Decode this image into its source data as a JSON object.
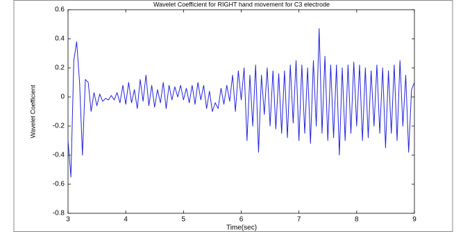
{
  "chart_data": {
    "type": "line",
    "title": "Wavelet Coefficient for RIGHT hand movement for C3 electrode",
    "x_label": "Time(sec)",
    "y_label": "Wavelet Coefficient",
    "xlim": [
      3,
      9
    ],
    "xticks": [
      3,
      4,
      5,
      6,
      7,
      8,
      9
    ],
    "ylim": [
      -0.8,
      0.6
    ],
    "yticks": [
      -0.8,
      -0.6,
      -0.4,
      -0.2,
      0,
      0.2,
      0.4,
      0.6
    ],
    "grid": false,
    "x": [
      3,
      3.05,
      3.1,
      3.15,
      3.2,
      3.25,
      3.3,
      3.35,
      3.4,
      3.45,
      3.5,
      3.55,
      3.6,
      3.65,
      3.7,
      3.75,
      3.8,
      3.85,
      3.9,
      3.95,
      4,
      4.05,
      4.1,
      4.15,
      4.2,
      4.25,
      4.3,
      4.35,
      4.4,
      4.45,
      4.5,
      4.55,
      4.6,
      4.65,
      4.7,
      4.75,
      4.8,
      4.85,
      4.9,
      4.95,
      5,
      5.05,
      5.1,
      5.15,
      5.2,
      5.25,
      5.3,
      5.35,
      5.4,
      5.45,
      5.5,
      5.55,
      5.6,
      5.65,
      5.7,
      5.75,
      5.8,
      5.85,
      5.9,
      5.95,
      6,
      6.05,
      6.1,
      6.15,
      6.2,
      6.25,
      6.3,
      6.35,
      6.4,
      6.45,
      6.5,
      6.55,
      6.6,
      6.65,
      6.7,
      6.75,
      6.8,
      6.85,
      6.9,
      6.95,
      7,
      7.05,
      7.1,
      7.15,
      7.2,
      7.25,
      7.3,
      7.35,
      7.4,
      7.45,
      7.5,
      7.55,
      7.6,
      7.65,
      7.7,
      7.75,
      7.8,
      7.85,
      7.9,
      7.95,
      8,
      8.05,
      8.1,
      8.15,
      8.2,
      8.25,
      8.3,
      8.35,
      8.4,
      8.45,
      8.5,
      8.55,
      8.6,
      8.65,
      8.7,
      8.75,
      8.8,
      8.85,
      8.9,
      8.95,
      9
    ],
    "series": [
      {
        "name": "C3",
        "color": "#2222dd",
        "values": [
          -0.3,
          -0.55,
          0.25,
          0.38,
          0.1,
          -0.4,
          0.12,
          0.1,
          -0.1,
          0.03,
          -0.06,
          0.02,
          -0.03,
          -0.01,
          -0.02,
          0.01,
          -0.02,
          0.03,
          -0.04,
          0.08,
          -0.05,
          0.1,
          -0.04,
          0.05,
          -0.08,
          0.12,
          -0.03,
          0.15,
          -0.06,
          0.08,
          -0.07,
          0.05,
          -0.04,
          0.1,
          -0.08,
          0.08,
          -0.02,
          0.07,
          0,
          0.08,
          -0.02,
          0.06,
          -0.04,
          0.08,
          -0.05,
          0.1,
          -0.02,
          0.08,
          -0.08,
          0.04,
          -0.1,
          -0.04,
          -0.08,
          0.06,
          -0.05,
          0.08,
          -0.03,
          0.15,
          -0.1,
          0.18,
          -0.02,
          0.2,
          -0.3,
          0.15,
          -0.2,
          0.22,
          -0.38,
          0.15,
          -0.12,
          0.2,
          -0.2,
          0.18,
          -0.22,
          0.16,
          -0.25,
          0.18,
          -0.28,
          0.22,
          -0.18,
          0.25,
          -0.3,
          0.22,
          -0.25,
          0.2,
          -0.32,
          0.25,
          -0.2,
          0.47,
          -0.25,
          0.28,
          -0.3,
          0.22,
          -0.28,
          0.22,
          -0.4,
          0.2,
          -0.3,
          0.22,
          -0.25,
          0.24,
          -0.2,
          0.22,
          -0.3,
          0.2,
          -0.28,
          0.18,
          -0.2,
          0.22,
          -0.25,
          0.2,
          -0.35,
          0.18,
          -0.25,
          0.22,
          -0.3,
          0.25,
          -0.2,
          0.15,
          -0.38,
          0.05,
          0.1
        ]
      }
    ]
  }
}
